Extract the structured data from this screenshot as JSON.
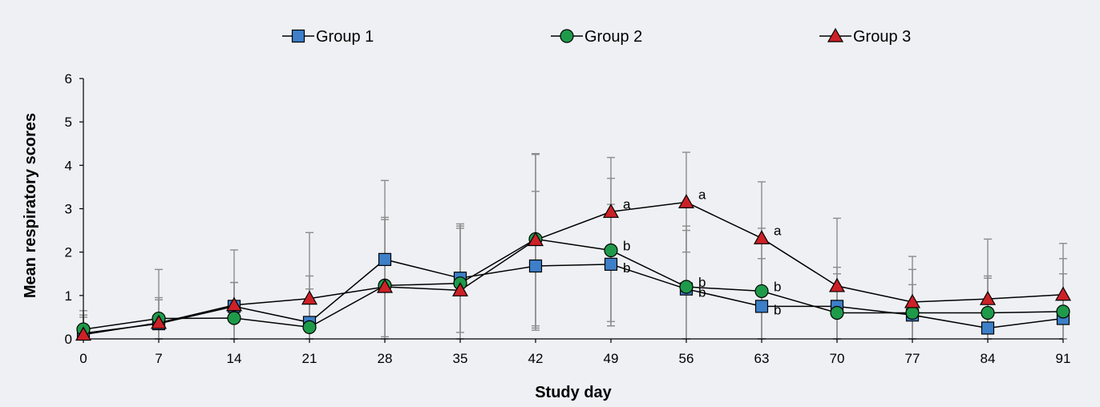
{
  "chart_data": {
    "type": "line",
    "title": "",
    "xlabel": "Study day",
    "ylabel": "Mean respiratory scores",
    "x": [
      0,
      7,
      14,
      21,
      28,
      35,
      42,
      49,
      56,
      63,
      70,
      77,
      84,
      91
    ],
    "xlim": [
      0,
      91
    ],
    "ylim": [
      0,
      6
    ],
    "yticks": [
      0,
      1,
      2,
      3,
      4,
      5,
      6
    ],
    "grid": false,
    "legend_position": "top",
    "series": [
      {
        "name": "Group 1",
        "marker": "square",
        "color": "#3d7fc8",
        "values": [
          0.13,
          0.35,
          0.75,
          0.38,
          1.83,
          1.4,
          1.68,
          1.72,
          1.15,
          0.75,
          0.75,
          0.55,
          0.25,
          0.47
        ],
        "error_upper": [
          0.65,
          1.6,
          2.05,
          1.45,
          3.65,
          2.6,
          3.4,
          3.1,
          2.5,
          1.85,
          1.5,
          1.6,
          1.45,
          1.85
        ],
        "error_lower": [
          0,
          0,
          0,
          0,
          0.05,
          0.15,
          0.25,
          0.3,
          0,
          0,
          0,
          0,
          0,
          0
        ]
      },
      {
        "name": "Group 2",
        "marker": "circle",
        "color": "#1e9a4a",
        "values": [
          0.22,
          0.47,
          0.48,
          0.27,
          1.23,
          1.28,
          2.3,
          2.04,
          1.2,
          1.1,
          0.6,
          0.6,
          0.6,
          0.63
        ],
        "error_upper": [
          0.55,
          0.95,
          1.3,
          1.15,
          2.75,
          2.55,
          4.25,
          3.7,
          2.6,
          2.55,
          1.65,
          1.25,
          1.4,
          1.5
        ],
        "error_lower": [
          0,
          0,
          0,
          0,
          0,
          0,
          0.3,
          0.4,
          0,
          0,
          0,
          0,
          0,
          0
        ]
      },
      {
        "name": "Group 3",
        "marker": "triangle",
        "color": "#cc2127",
        "values": [
          0.1,
          0.37,
          0.78,
          0.93,
          1.2,
          1.12,
          2.28,
          2.93,
          3.15,
          2.32,
          1.22,
          0.85,
          0.92,
          1.02
        ],
        "error_upper": [
          0.5,
          0.9,
          1.3,
          2.45,
          2.8,
          2.65,
          4.27,
          4.18,
          4.3,
          3.62,
          2.78,
          1.9,
          2.3,
          2.2
        ],
        "error_lower": [
          0,
          0,
          0,
          0,
          0,
          0,
          0.2,
          0.3,
          2.0,
          0,
          0,
          0,
          0,
          0
        ]
      }
    ],
    "annotations": [
      {
        "text": "a",
        "series": "Group 3",
        "x": 49
      },
      {
        "text": "a",
        "series": "Group 3",
        "x": 56
      },
      {
        "text": "a",
        "series": "Group 3",
        "x": 63
      },
      {
        "text": "b",
        "series": "Group 2",
        "x": 49
      },
      {
        "text": "b",
        "series": "Group 2",
        "x": 56
      },
      {
        "text": "b",
        "series": "Group 2",
        "x": 63
      },
      {
        "text": "b",
        "series": "Group 1",
        "x": 49
      },
      {
        "text": "b",
        "series": "Group 1",
        "x": 56
      },
      {
        "text": "b",
        "series": "Group 1",
        "x": 63
      }
    ]
  }
}
